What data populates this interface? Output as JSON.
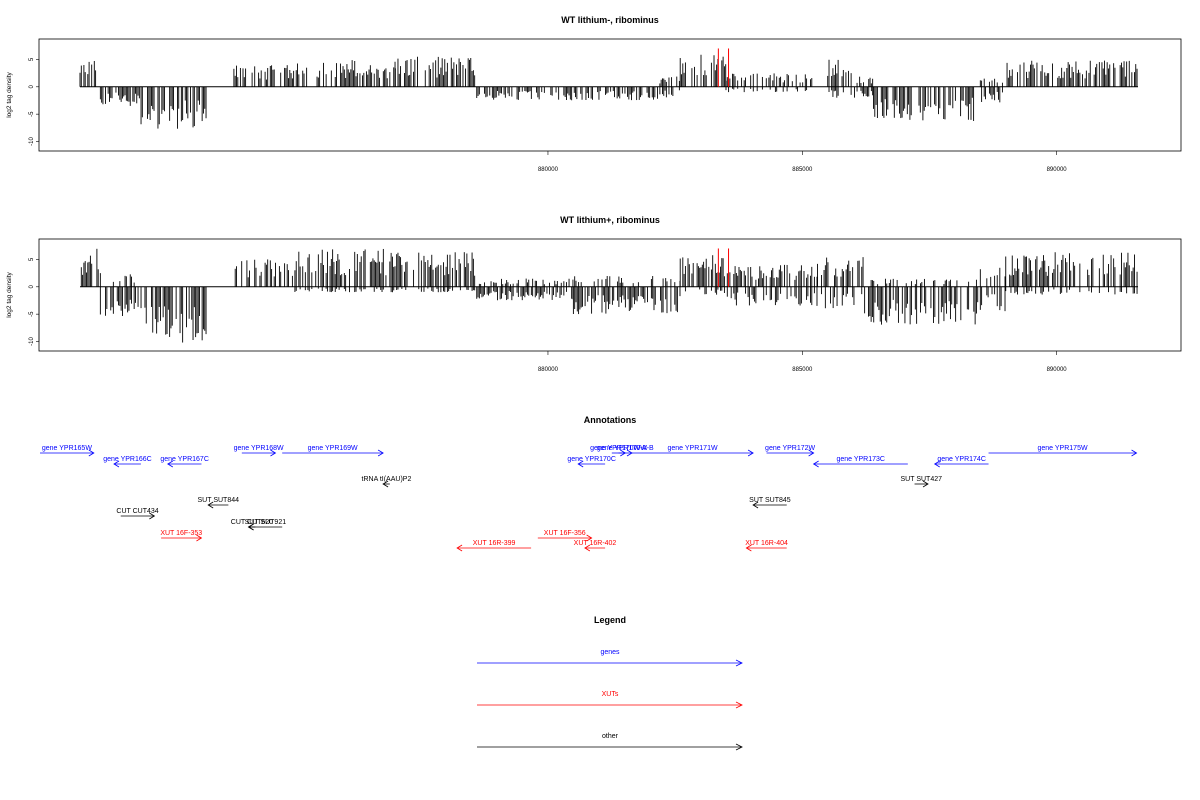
{
  "colors": {
    "genes": "#0000ff",
    "xuts": "#ff0000",
    "other": "#000000",
    "highlight": "#ff0000",
    "bars": "#000000"
  },
  "chart_data": [
    {
      "type": "bar",
      "title": "WT lithium-, ribominus",
      "ylabel": "log2 tag density",
      "xlim": [
        870800,
        891600
      ],
      "ylim": [
        -11,
        8
      ],
      "xticks": [
        880000,
        885000,
        890000
      ],
      "yticks": [
        5,
        0,
        -5,
        -10
      ],
      "highlight_x": [
        883350,
        883550
      ],
      "segments": [
        {
          "x": [
            870800,
            871200
          ],
          "max": 5,
          "min": 0
        },
        {
          "x": [
            871200,
            872000
          ],
          "max": 0.5,
          "min": -3.5
        },
        {
          "x": [
            872000,
            873300
          ],
          "max": 0.5,
          "min": -7.8
        },
        {
          "x": [
            873800,
            875000
          ],
          "max": 4,
          "min": 0
        },
        {
          "x": [
            875000,
            877000
          ],
          "max": 5,
          "min": 0
        },
        {
          "x": [
            877000,
            878600
          ],
          "max": 5.5,
          "min": -0.5
        },
        {
          "x": [
            878600,
            882200
          ],
          "max": 0.5,
          "min": -2.5
        },
        {
          "x": [
            882200,
            882600
          ],
          "max": 2,
          "min": -2
        },
        {
          "x": [
            882600,
            883500
          ],
          "max": 6,
          "min": 0
        },
        {
          "x": [
            883500,
            885200
          ],
          "max": 2.5,
          "min": -1
        },
        {
          "x": [
            885500,
            886000
          ],
          "max": 5,
          "min": -2
        },
        {
          "x": [
            886000,
            886400
          ],
          "max": 2,
          "min": -2
        },
        {
          "x": [
            886400,
            888500
          ],
          "max": 0.5,
          "min": -6.5
        },
        {
          "x": [
            888500,
            889000
          ],
          "max": 1.5,
          "min": -3
        },
        {
          "x": [
            889000,
            891600
          ],
          "max": 5,
          "min": 0
        }
      ]
    },
    {
      "type": "bar",
      "title": "WT lithium+, ribominus",
      "ylabel": "log2 tag density",
      "xlim": [
        870800,
        891600
      ],
      "ylim": [
        -11,
        8
      ],
      "xticks": [
        880000,
        885000,
        890000
      ],
      "yticks": [
        5,
        0,
        -5,
        -10
      ],
      "highlight_x": [
        883350,
        883550
      ],
      "segments": [
        {
          "x": [
            870800,
            871200
          ],
          "max": 7,
          "min": 0
        },
        {
          "x": [
            871200,
            872000
          ],
          "max": 2.5,
          "min": -5.5
        },
        {
          "x": [
            872000,
            873300
          ],
          "max": 0.5,
          "min": -10.2
        },
        {
          "x": [
            873800,
            875000
          ],
          "max": 5,
          "min": 0
        },
        {
          "x": [
            875000,
            877000
          ],
          "max": 7,
          "min": -1
        },
        {
          "x": [
            877000,
            878600
          ],
          "max": 6.5,
          "min": -1
        },
        {
          "x": [
            878600,
            880500
          ],
          "max": 1.5,
          "min": -2.5
        },
        {
          "x": [
            880500,
            882600
          ],
          "max": 2,
          "min": -5
        },
        {
          "x": [
            882600,
            883500
          ],
          "max": 6,
          "min": -1.5
        },
        {
          "x": [
            883500,
            885300
          ],
          "max": 4,
          "min": -3.5
        },
        {
          "x": [
            885300,
            886200
          ],
          "max": 5.5,
          "min": -4
        },
        {
          "x": [
            886200,
            888500
          ],
          "max": 1.5,
          "min": -7
        },
        {
          "x": [
            888500,
            889000
          ],
          "max": 3.5,
          "min": -4.5
        },
        {
          "x": [
            889000,
            891600
          ],
          "max": 6.5,
          "min": -1.5
        }
      ]
    }
  ],
  "annotations": {
    "title": "Annotations",
    "items": [
      {
        "label": "gene YPR165W",
        "kind": "gene",
        "strand": "+",
        "start": 870200,
        "end": 871000,
        "row": 1
      },
      {
        "label": "gene YPR166C",
        "kind": "gene",
        "strand": "-",
        "start": 871300,
        "end": 871700,
        "row": 2
      },
      {
        "label": "gene YPR167C",
        "kind": "gene",
        "strand": "-",
        "start": 872100,
        "end": 872600,
        "row": 2
      },
      {
        "label": "gene YPR168W",
        "kind": "gene",
        "strand": "+",
        "start": 873200,
        "end": 873700,
        "row": 1
      },
      {
        "label": "gene YPR169W",
        "kind": "gene",
        "strand": "+",
        "start": 873800,
        "end": 875300,
        "row": 1
      },
      {
        "label": "tRNA tI(AAU)P2",
        "kind": "other",
        "strand": "-",
        "start": 875300,
        "end": 875400,
        "row": 4
      },
      {
        "label": "SUT SUT844",
        "kind": "other",
        "strand": "-",
        "start": 872700,
        "end": 873000,
        "row": 5
      },
      {
        "label": "CUT CUT434",
        "kind": "other",
        "strand": "+",
        "start": 871400,
        "end": 871900,
        "row": 6
      },
      {
        "label": "CUT CUT620",
        "kind": "other",
        "strand": "-",
        "start": 873300,
        "end": 873400,
        "row": 7
      },
      {
        "label": "SUT SUT921",
        "kind": "other",
        "strand": "-",
        "start": 873300,
        "end": 873800,
        "row": 7
      },
      {
        "label": "XUT 16F-353",
        "kind": "xut",
        "strand": "+",
        "start": 872000,
        "end": 872600,
        "row": 8
      },
      {
        "label": "gene YPR170W-A",
        "kind": "gene",
        "strand": "+",
        "start": 878700,
        "end": 878900,
        "row": 1
      },
      {
        "label": "gene YPR170W-B",
        "kind": "gene",
        "strand": "+",
        "start": 878800,
        "end": 879000,
        "row": 1
      },
      {
        "label": "gene YPR170C",
        "kind": "gene",
        "strand": "-",
        "start": 878200,
        "end": 878600,
        "row": 2
      },
      {
        "label": "gene YPR171W",
        "kind": "gene",
        "strand": "+",
        "start": 879000,
        "end": 880800,
        "row": 1
      },
      {
        "label": "gene YPR172W",
        "kind": "gene",
        "strand": "+",
        "start": 881000,
        "end": 881700,
        "row": 1
      },
      {
        "label": "gene YPR173C",
        "kind": "gene",
        "strand": "-",
        "start": 881700,
        "end": 883100,
        "row": 2
      },
      {
        "label": "gene YPR174C",
        "kind": "gene",
        "strand": "-",
        "start": 883500,
        "end": 884300,
        "row": 2
      },
      {
        "label": "gene YPR175W",
        "kind": "gene",
        "strand": "+",
        "start": 884300,
        "end": 886500,
        "row": 1
      },
      {
        "label": "SUT SUT845",
        "kind": "other",
        "strand": "-",
        "start": 880800,
        "end": 881300,
        "row": 5
      },
      {
        "label": "SUT SUT427",
        "kind": "other",
        "strand": "+",
        "start": 883200,
        "end": 883400,
        "row": 4
      },
      {
        "label": "XUT 16R-399",
        "kind": "xut",
        "strand": "-",
        "start": 876400,
        "end": 877500,
        "row": 9
      },
      {
        "label": "XUT 16F-356",
        "kind": "xut",
        "strand": "+",
        "start": 877600,
        "end": 878400,
        "row": 8
      },
      {
        "label": "XUT 16R-402",
        "kind": "xut",
        "strand": "-",
        "start": 878300,
        "end": 878600,
        "row": 9
      },
      {
        "label": "XUT 16R-404",
        "kind": "xut",
        "strand": "-",
        "start": 880700,
        "end": 881300,
        "row": 9
      }
    ]
  },
  "legend": {
    "title": "Legend",
    "items": [
      {
        "label": "genes",
        "kind": "gene"
      },
      {
        "label": "XUTs",
        "kind": "xut"
      },
      {
        "label": "other",
        "kind": "other"
      }
    ]
  }
}
